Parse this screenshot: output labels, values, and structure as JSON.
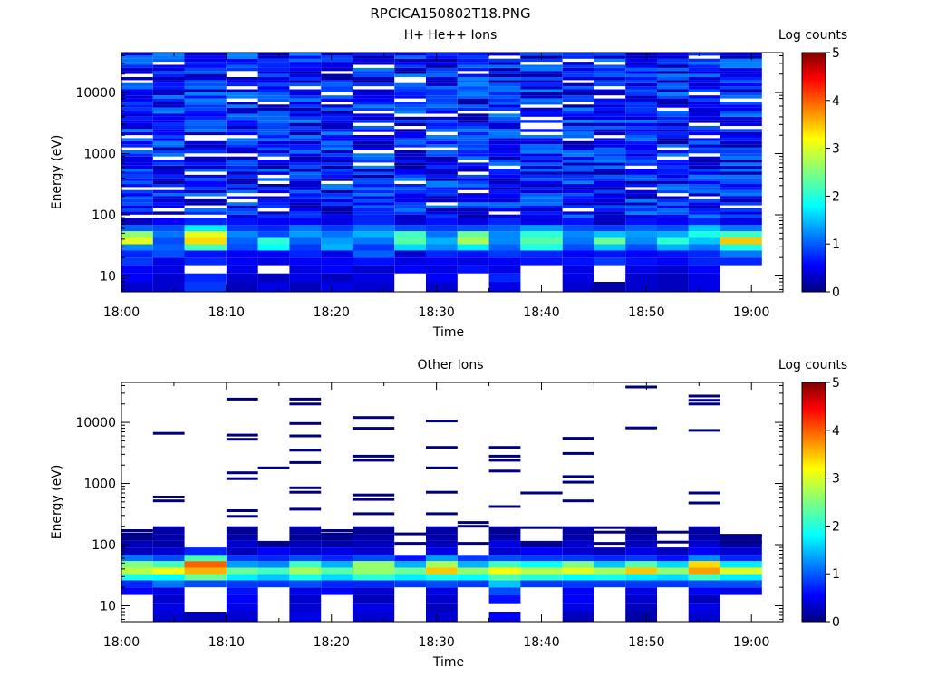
{
  "page_title": "RPCICA150802T18.PNG",
  "chart_data": [
    {
      "type": "heatmap",
      "title": "H+ He++ Ions",
      "xlabel": "Time",
      "ylabel": "Energy (eV)",
      "x_ticks": [
        "18:00",
        "18:10",
        "18:20",
        "18:30",
        "18:40",
        "18:50",
        "19:00"
      ],
      "xlim": [
        "18:00",
        "19:03"
      ],
      "y_scale": "log",
      "y_ticks": [
        10,
        100,
        1000,
        10000
      ],
      "ylim": [
        5.5,
        45000
      ],
      "colorbar": {
        "label": "Log counts",
        "range": [
          0,
          5
        ],
        "ticks": [
          0,
          1,
          2,
          3,
          4,
          5
        ]
      },
      "bins_start": [
        "18:00",
        "18:03",
        "18:06",
        "18:10",
        "18:13",
        "18:16",
        "18:19",
        "18:22",
        "18:26",
        "18:29",
        "18:32",
        "18:35",
        "18:38",
        "18:42",
        "18:45",
        "18:48",
        "18:51",
        "18:54",
        "18:57"
      ],
      "bins_end": [
        "18:03",
        "18:06",
        "18:10",
        "18:13",
        "18:16",
        "18:19",
        "18:22",
        "18:26",
        "18:29",
        "18:32",
        "18:35",
        "18:38",
        "18:42",
        "18:45",
        "18:48",
        "18:51",
        "18:54",
        "18:57",
        "19:01"
      ],
      "energy_bands": [
        {
          "lo": 5.5,
          "hi": 8,
          "values": [
            0.4,
            0.4,
            0.9,
            0.3,
            0.5,
            0.3,
            0.5,
            0.4,
            null,
            0.4,
            null,
            0.5,
            null,
            0.4,
            0.2,
            0.4,
            0.3,
            0.5,
            null
          ]
        },
        {
          "lo": 8,
          "hi": 11,
          "values": [
            0.6,
            0.4,
            0.8,
            0.4,
            0.3,
            0.5,
            0.3,
            0.5,
            null,
            0.6,
            null,
            0.8,
            null,
            0.5,
            null,
            0.4,
            0.3,
            0.5,
            null
          ]
        },
        {
          "lo": 11,
          "hi": 15,
          "values": [
            0.6,
            0.5,
            null,
            0.5,
            null,
            0.5,
            0.6,
            0.4,
            0.6,
            0.5,
            0.7,
            0.5,
            null,
            0.5,
            null,
            0.5,
            0.4,
            0.6,
            null
          ]
        },
        {
          "lo": 15,
          "hi": 20,
          "values": [
            0.9,
            0.5,
            0.8,
            0.6,
            0.5,
            0.6,
            0.6,
            0.7,
            0.5,
            0.6,
            0.5,
            0.6,
            0.7,
            0.7,
            0.9,
            0.7,
            0.6,
            0.8,
            0.8
          ]
        },
        {
          "lo": 20,
          "hi": 26,
          "values": [
            0.8,
            1.0,
            0.7,
            0.6,
            0.6,
            0.8,
            0.5,
            1.1,
            0.4,
            0.8,
            0.7,
            0.9,
            0.8,
            0.6,
            0.7,
            0.6,
            0.7,
            0.8,
            1.2
          ]
        },
        {
          "lo": 26,
          "hi": 33,
          "values": [
            1.3,
            1.1,
            2.2,
            1.0,
            1.9,
            0.9,
            1.5,
            0.9,
            1.7,
            1.3,
            1.8,
            1.1,
            2.0,
            1.0,
            1.6,
            1.0,
            1.5,
            1.2,
            2.0
          ]
        },
        {
          "lo": 33,
          "hi": 42,
          "values": [
            3.0,
            1.0,
            3.3,
            1.1,
            2.1,
            1.1,
            1.4,
            1.2,
            2.3,
            1.5,
            2.7,
            1.3,
            2.3,
            1.2,
            2.4,
            1.3,
            2.1,
            1.6,
            3.4
          ]
        },
        {
          "lo": 42,
          "hi": 54,
          "values": [
            2.6,
            1.2,
            3.0,
            1.3,
            1.0,
            1.4,
            1.2,
            1.5,
            2.2,
            1.2,
            2.4,
            1.3,
            2.1,
            1.3,
            1.6,
            1.4,
            1.5,
            2.0,
            2.2
          ]
        },
        {
          "lo": 54,
          "hi": 68,
          "values": [
            1.1,
            1.0,
            1.8,
            0.9,
            0.8,
            1.2,
            0.9,
            1.2,
            1.0,
            0.9,
            1.0,
            1.1,
            1.4,
            1.0,
            0.9,
            1.1,
            1.0,
            1.6,
            1.2
          ]
        },
        {
          "lo": 68,
          "hi": 90,
          "values": [
            0.3,
            0.6,
            0.8,
            0.7,
            0.6,
            0.6,
            0.5,
            0.8,
            0.4,
            0.7,
            0.5,
            0.8,
            0.5,
            0.7,
            0.3,
            0.7,
            0.6,
            0.8,
            0.5
          ]
        }
      ],
      "upper_noise_range": [
        90,
        45000
      ],
      "upper_noise_level": "0.1-1.3"
    },
    {
      "type": "heatmap",
      "title": "Other Ions",
      "xlabel": "Time",
      "ylabel": "Energy (eV)",
      "x_ticks": [
        "18:00",
        "18:10",
        "18:20",
        "18:30",
        "18:40",
        "18:50",
        "19:00"
      ],
      "xlim": [
        "18:00",
        "19:03"
      ],
      "y_scale": "log",
      "y_ticks": [
        10,
        100,
        1000,
        10000
      ],
      "ylim": [
        5.5,
        45000
      ],
      "colorbar": {
        "label": "Log counts",
        "range": [
          0,
          5
        ],
        "ticks": [
          0,
          1,
          2,
          3,
          4,
          5
        ]
      },
      "bins_start": [
        "18:00",
        "18:03",
        "18:06",
        "18:10",
        "18:13",
        "18:16",
        "18:19",
        "18:22",
        "18:26",
        "18:29",
        "18:32",
        "18:35",
        "18:38",
        "18:42",
        "18:45",
        "18:48",
        "18:51",
        "18:54",
        "18:57"
      ],
      "bins_end": [
        "18:03",
        "18:06",
        "18:10",
        "18:13",
        "18:16",
        "18:19",
        "18:22",
        "18:26",
        "18:29",
        "18:32",
        "18:35",
        "18:38",
        "18:42",
        "18:45",
        "18:48",
        "18:51",
        "18:54",
        "18:57",
        "19:01"
      ],
      "energy_bands": [
        {
          "lo": 5.5,
          "hi": 8,
          "values": [
            null,
            0.4,
            0.3,
            0.4,
            null,
            0.5,
            null,
            0.4,
            null,
            0.4,
            null,
            0.6,
            null,
            0.3,
            null,
            0.2,
            null,
            0.4,
            null
          ]
        },
        {
          "lo": 8,
          "hi": 11,
          "values": [
            null,
            0.5,
            null,
            0.5,
            null,
            0.4,
            null,
            0.5,
            null,
            0.3,
            null,
            null,
            null,
            0.5,
            null,
            0.3,
            null,
            0.5,
            null
          ]
        },
        {
          "lo": 11,
          "hi": 15,
          "values": [
            null,
            0.4,
            null,
            0.6,
            null,
            0.4,
            null,
            0.3,
            null,
            0.4,
            null,
            0.7,
            null,
            0.6,
            null,
            0.4,
            null,
            0.3,
            null
          ]
        },
        {
          "lo": 15,
          "hi": 20,
          "values": [
            0.6,
            0.5,
            null,
            0.7,
            null,
            0.5,
            0.6,
            0.4,
            null,
            0.5,
            null,
            1.0,
            null,
            0.6,
            null,
            0.5,
            null,
            0.6,
            0.5
          ]
        },
        {
          "lo": 20,
          "hi": 26,
          "values": [
            0.8,
            1.2,
            1.0,
            0.9,
            0.9,
            1.0,
            0.8,
            0.8,
            0.9,
            1.0,
            0.9,
            1.6,
            0.9,
            0.9,
            0.9,
            0.9,
            0.9,
            1.0,
            1.0
          ]
        },
        {
          "lo": 26,
          "hi": 33,
          "values": [
            2.0,
            1.9,
            2.4,
            1.8,
            1.6,
            2.0,
            1.7,
            2.1,
            1.8,
            2.0,
            1.9,
            2.3,
            2.1,
            1.9,
            2.0,
            1.8,
            1.7,
            2.2,
            1.8
          ]
        },
        {
          "lo": 33,
          "hi": 42,
          "values": [
            2.8,
            3.1,
            3.5,
            2.4,
            2.2,
            2.7,
            2.3,
            2.6,
            2.4,
            3.4,
            2.6,
            3.1,
            2.8,
            3.0,
            2.7,
            3.4,
            2.6,
            3.6,
            3.0
          ]
        },
        {
          "lo": 42,
          "hi": 54,
          "values": [
            2.5,
            2.2,
            3.9,
            1.4,
            1.3,
            2.2,
            1.5,
            2.6,
            1.5,
            2.7,
            1.5,
            2.2,
            1.9,
            2.5,
            1.6,
            2.3,
            1.7,
            3.3,
            1.8
          ]
        },
        {
          "lo": 54,
          "hi": 68,
          "values": [
            1.2,
            1.0,
            2.2,
            0.9,
            0.8,
            1.0,
            0.8,
            1.0,
            0.7,
            1.4,
            0.9,
            1.0,
            0.9,
            0.9,
            0.8,
            0.9,
            0.7,
            1.3,
            0.8
          ]
        },
        {
          "lo": 68,
          "hi": 90,
          "values": [
            0.3,
            0.4,
            0.8,
            0.3,
            0.6,
            0.4,
            0.5,
            0.4,
            null,
            0.5,
            null,
            0.4,
            0.6,
            0.4,
            0.3,
            0.5,
            0.3,
            0.6,
            0.4
          ]
        },
        {
          "lo": 90,
          "hi": 115,
          "values": [
            0.3,
            0.2,
            null,
            0.4,
            0.2,
            0.3,
            0.2,
            0.3,
            null,
            0.3,
            null,
            0.5,
            0.2,
            0.4,
            null,
            0.3,
            null,
            0.4,
            0.2
          ]
        },
        {
          "lo": 115,
          "hi": 150,
          "values": [
            0.1,
            0.2,
            null,
            0.2,
            null,
            0.1,
            0.2,
            0.2,
            null,
            0.2,
            null,
            0.2,
            null,
            0.2,
            null,
            0.2,
            null,
            0.2,
            0.1
          ]
        },
        {
          "lo": 150,
          "hi": 200,
          "values": [
            null,
            0.2,
            null,
            0.1,
            null,
            0.2,
            null,
            0.1,
            null,
            0.2,
            null,
            0.1,
            null,
            0.2,
            null,
            0.1,
            null,
            0.2,
            null
          ]
        }
      ],
      "upper_lines": [
        {
          "bin": "18:03",
          "energies": [
            6600,
            600,
            520
          ]
        },
        {
          "bin": "18:10",
          "energies": [
            24000,
            6200,
            5300,
            1500,
            1200,
            360,
            290
          ]
        },
        {
          "bin": "18:13",
          "energies": [
            1800
          ]
        },
        {
          "bin": "18:16",
          "energies": [
            24000,
            20000,
            9600,
            6000,
            3500,
            2200,
            850,
            720,
            380
          ]
        },
        {
          "bin": "18:22",
          "energies": [
            12000,
            8000,
            2800,
            2400,
            650,
            550,
            320
          ]
        },
        {
          "bin": "18:29",
          "energies": [
            10500,
            3900,
            1800,
            720,
            320
          ]
        },
        {
          "bin": "18:35",
          "energies": [
            3900,
            2800,
            2400,
            1600,
            420
          ]
        },
        {
          "bin": "18:38",
          "energies": [
            700
          ]
        },
        {
          "bin": "18:42",
          "energies": [
            5500,
            3100,
            1300,
            1050,
            520
          ]
        },
        {
          "bin": "18:48",
          "energies": [
            38000,
            8100
          ]
        },
        {
          "bin": "18:54",
          "energies": [
            27000,
            23000,
            20000,
            7400,
            700,
            480
          ]
        }
      ],
      "low_bins": [
        {
          "bin": "18:00",
          "energies": [
            170,
            150,
            125
          ]
        },
        {
          "bin": "18:13",
          "energies": [
            105
          ]
        },
        {
          "bin": "18:19",
          "energies": [
            170,
            150,
            125
          ]
        },
        {
          "bin": "18:26",
          "energies": [
            150,
            105
          ]
        },
        {
          "bin": "18:32",
          "energies": [
            230,
            200,
            105
          ]
        },
        {
          "bin": "18:38",
          "energies": [
            190,
            100
          ]
        },
        {
          "bin": "18:45",
          "energies": [
            190,
            160,
            105
          ]
        },
        {
          "bin": "18:51",
          "energies": [
            160,
            110
          ]
        },
        {
          "bin": "18:57",
          "energies": [
            140,
            110
          ]
        }
      ]
    }
  ]
}
